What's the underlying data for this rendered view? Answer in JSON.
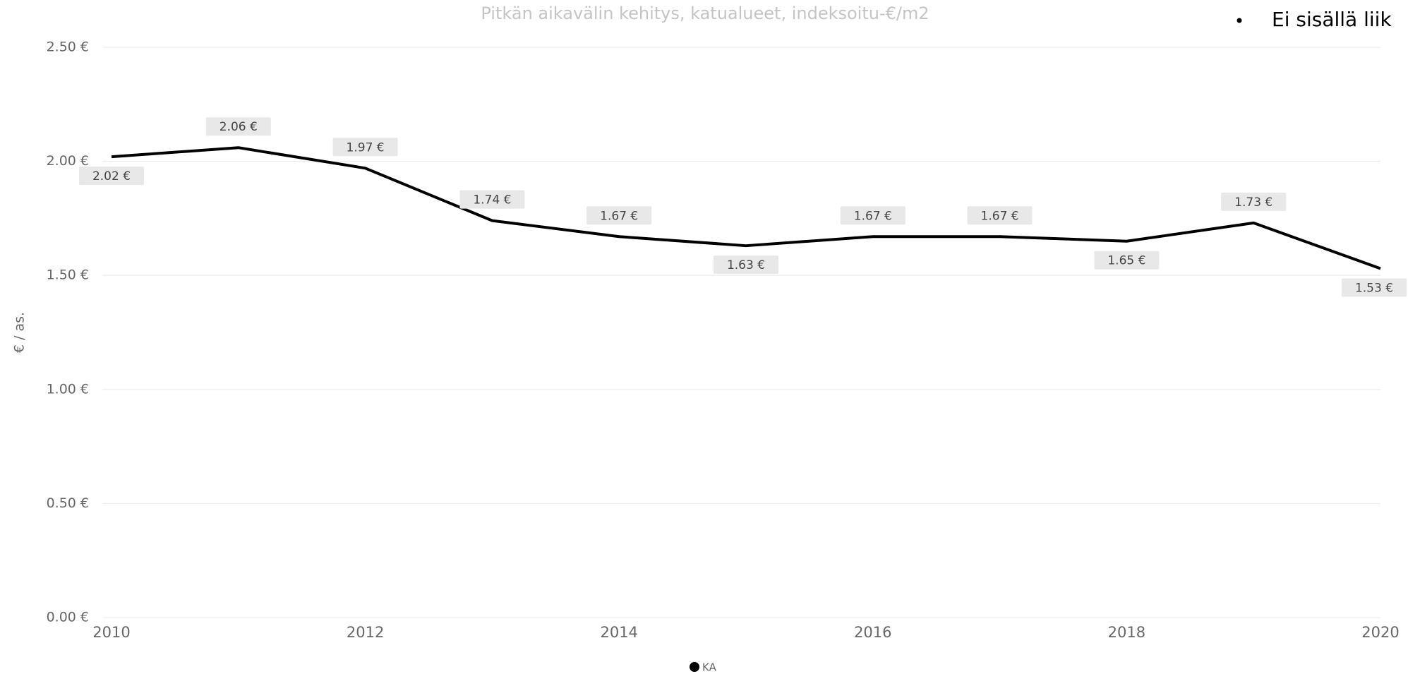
{
  "chart_data": {
    "type": "line",
    "title": "Pitkän aikavälin kehitys, katualueet, indeksoitu-€/m2",
    "y_label": "€ / as.",
    "annotation": "Ei sisällä liik",
    "x": [
      2010,
      2011,
      2012,
      2013,
      2014,
      2015,
      2016,
      2017,
      2018,
      2019,
      2020
    ],
    "series": [
      {
        "name": "KA",
        "color": "#000000",
        "values": [
          2.02,
          2.06,
          1.97,
          1.74,
          1.67,
          1.63,
          1.67,
          1.67,
          1.65,
          1.73,
          1.53
        ],
        "value_labels": [
          "2.02 €",
          "2.06 €",
          "1.97 €",
          "1.74 €",
          "1.67 €",
          "1.63 €",
          "1.67 €",
          "1.67 €",
          "1.65 €",
          "1.73 €",
          "1.53 €"
        ]
      }
    ],
    "xlim": [
      2010,
      2020
    ],
    "xticks": [
      2010,
      2012,
      2014,
      2016,
      2018,
      2020
    ],
    "ylim": [
      0,
      2.5
    ],
    "yticks": [
      {
        "value": 0,
        "label": "0.00 €"
      },
      {
        "value": 0.5,
        "label": "0.50 €"
      },
      {
        "value": 1,
        "label": "1.00 €"
      },
      {
        "value": 1.5,
        "label": "1.50 €"
      },
      {
        "value": 2,
        "label": "2.00 €"
      },
      {
        "value": 2.5,
        "label": "2.50 €"
      }
    ],
    "grid": true
  }
}
